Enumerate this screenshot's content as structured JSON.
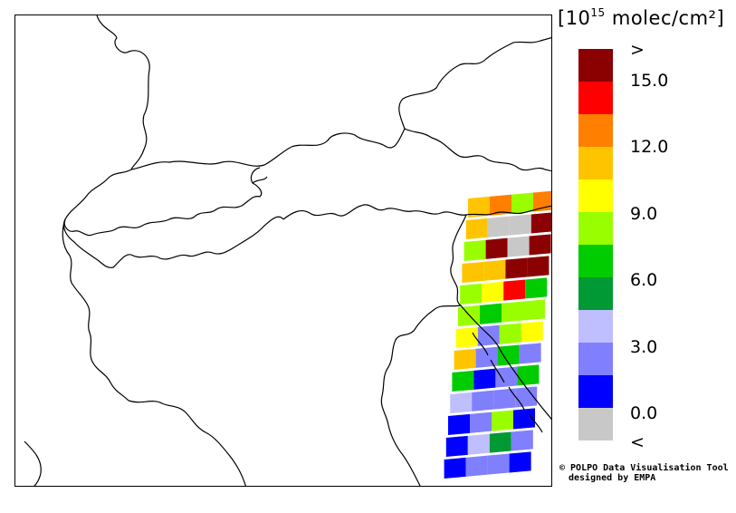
{
  "legend": {
    "title_main": "[10",
    "title_exp": "15",
    "title_rest": " molec/cm²]",
    "labels": [
      ">",
      "15.0",
      "12.0",
      "9.0",
      "6.0",
      "3.0",
      "0.0",
      "<"
    ],
    "colors": [
      "#8b0000",
      "#ff0000",
      "#ff8000",
      "#ffc400",
      "#ffff00",
      "#99ff00",
      "#00cc00",
      "#009933",
      "#bfbfff",
      "#8080ff",
      "#0000ff",
      "#c8c8c8"
    ]
  },
  "credit": {
    "line1": "© POLPO Data Visualisation Tool",
    "line2": "designed by EMPA"
  },
  "map": {
    "land_color": "#ffffff",
    "border_color": "#000000",
    "swath_rows": [
      [
        "#ffc400",
        "#ff8000",
        "#99ff00",
        "#ff8000"
      ],
      [
        "#ffc400",
        "#c8c8c8",
        "#c8c8c8",
        "#8b0000"
      ],
      [
        "#99ff00",
        "#8b0000",
        "#c8c8c8",
        "#8b0000"
      ],
      [
        "#ffc400",
        "#ffc400",
        "#8b0000",
        "#8b0000"
      ],
      [
        "#99ff00",
        "#ffff00",
        "#ff0000",
        "#00cc00"
      ],
      [
        "#99ff00",
        "#00cc00",
        "#99ff00",
        "#99ff00"
      ],
      [
        "#ffff00",
        "#8080ff",
        "#99ff00",
        "#ffff00"
      ],
      [
        "#ffc400",
        "#8080ff",
        "#00cc00",
        "#8080ff"
      ],
      [
        "#00cc00",
        "#0000ff",
        "#8080ff",
        "#00cc00"
      ],
      [
        "#bfbfff",
        "#8080ff",
        "#8080ff",
        "#8080ff"
      ],
      [
        "#0000ff",
        "#8080ff",
        "#99ff00",
        "#0000ff"
      ],
      [
        "#0000ff",
        "#bfbfff",
        "#009933",
        "#8080ff"
      ],
      [
        "#0000ff",
        "#8080ff",
        "#8080ff",
        "#0000ff"
      ]
    ]
  }
}
